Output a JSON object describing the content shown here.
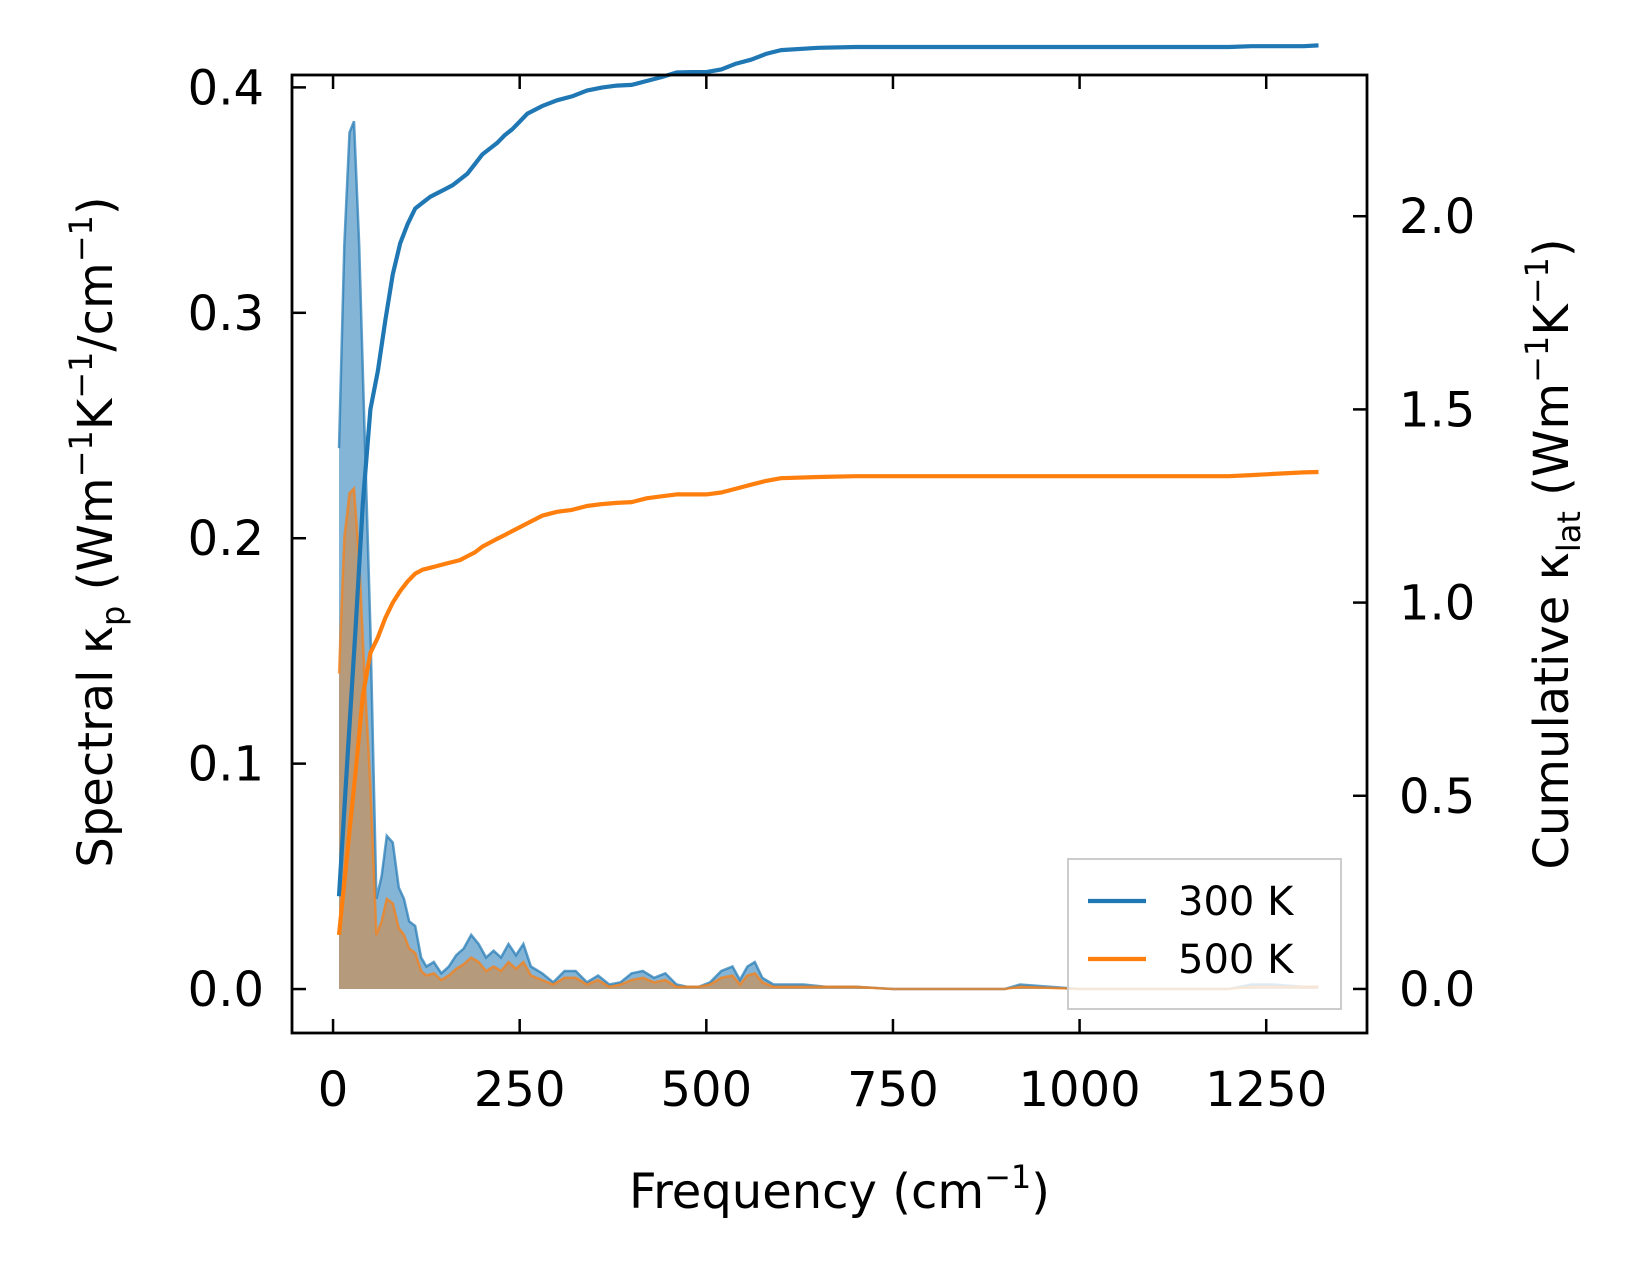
{
  "chart_data": {
    "type": "line",
    "title": "",
    "xlabel": "Frequency (cm",
    "xlabel_sup": "−1",
    "xlabel_end": ")",
    "ylabel_left_parts": [
      "Spectral κ",
      "p",
      " (Wm",
      "−1",
      "K",
      "−1",
      "/cm",
      "−1",
      ")"
    ],
    "ylabel_right_parts": [
      "Cumulative κ",
      "lat",
      " (Wm",
      "−1",
      "K",
      "−1",
      ")"
    ],
    "xlim": [
      -55,
      1385
    ],
    "ylim_left": [
      -0.0195,
      0.4055
    ],
    "ylim_right": [
      -0.114,
      2.3655
    ],
    "xticks": [
      0,
      250,
      500,
      750,
      1000,
      1250
    ],
    "xtick_labels": [
      "0",
      "250",
      "500",
      "750",
      "1000",
      "1250"
    ],
    "yticks_left": [
      0.0,
      0.1,
      0.2,
      0.3,
      0.4
    ],
    "ytick_labels_left": [
      "0.0",
      "0.1",
      "0.2",
      "0.3",
      "0.4"
    ],
    "yticks_right": [
      0.0,
      0.5,
      1.0,
      1.5,
      2.0
    ],
    "ytick_labels_right": [
      "0.0",
      "0.5",
      "1.0",
      "1.5",
      "2.0"
    ],
    "legend_position": "lower-right",
    "colors": {
      "s300": "#1f77b4",
      "s500": "#ff7f0e",
      "fill300": "#1f77b4",
      "fill500": "#d08c4b",
      "axis": "#000000"
    },
    "spectral_series": [
      {
        "name": "Spectral 300 K",
        "axis": "left",
        "color": "#1f77b4",
        "x": [
          8,
          15,
          22,
          28,
          35,
          42,
          50,
          58,
          65,
          72,
          80,
          88,
          95,
          102,
          110,
          118,
          125,
          135,
          145,
          155,
          165,
          175,
          185,
          195,
          205,
          215,
          225,
          235,
          245,
          255,
          265,
          280,
          295,
          310,
          325,
          340,
          355,
          370,
          385,
          400,
          415,
          430,
          445,
          460,
          475,
          490,
          505,
          520,
          535,
          545,
          555,
          565,
          575,
          590,
          610,
          630,
          660,
          700,
          750,
          800,
          900,
          920,
          1000,
          1100,
          1200,
          1230,
          1260,
          1300,
          1320
        ],
        "y": [
          0.24,
          0.33,
          0.38,
          0.385,
          0.33,
          0.25,
          0.16,
          0.04,
          0.05,
          0.068,
          0.065,
          0.045,
          0.04,
          0.03,
          0.028,
          0.014,
          0.01,
          0.012,
          0.007,
          0.01,
          0.015,
          0.018,
          0.024,
          0.02,
          0.014,
          0.017,
          0.014,
          0.02,
          0.015,
          0.02,
          0.01,
          0.007,
          0.003,
          0.008,
          0.008,
          0.003,
          0.006,
          0.002,
          0.003,
          0.007,
          0.008,
          0.005,
          0.007,
          0.002,
          0.001,
          0.001,
          0.003,
          0.008,
          0.01,
          0.004,
          0.01,
          0.012,
          0.005,
          0.002,
          0.002,
          0.002,
          0.001,
          0.001,
          0.0,
          0.0,
          0.0,
          0.002,
          0.0,
          0.0,
          0.0,
          0.002,
          0.002,
          0.001,
          0.001
        ]
      },
      {
        "name": "Spectral 500 K",
        "axis": "left",
        "color": "#ff7f0e",
        "x": [
          8,
          15,
          22,
          28,
          35,
          42,
          50,
          58,
          65,
          72,
          80,
          88,
          95,
          102,
          110,
          118,
          125,
          135,
          145,
          155,
          165,
          175,
          185,
          195,
          205,
          215,
          225,
          235,
          245,
          255,
          265,
          280,
          295,
          310,
          325,
          340,
          355,
          370,
          385,
          400,
          415,
          430,
          445,
          460,
          475,
          490,
          505,
          520,
          535,
          545,
          555,
          565,
          575,
          590,
          610,
          630,
          660,
          700,
          750,
          800,
          900,
          920,
          1000,
          1100,
          1200,
          1230,
          1260,
          1300,
          1320
        ],
        "y": [
          0.14,
          0.2,
          0.22,
          0.222,
          0.19,
          0.14,
          0.09,
          0.024,
          0.03,
          0.04,
          0.038,
          0.027,
          0.024,
          0.018,
          0.016,
          0.008,
          0.006,
          0.007,
          0.004,
          0.006,
          0.009,
          0.011,
          0.014,
          0.012,
          0.008,
          0.01,
          0.008,
          0.012,
          0.009,
          0.012,
          0.006,
          0.004,
          0.002,
          0.005,
          0.005,
          0.002,
          0.004,
          0.001,
          0.002,
          0.004,
          0.005,
          0.003,
          0.004,
          0.001,
          0.001,
          0.001,
          0.002,
          0.005,
          0.006,
          0.002,
          0.006,
          0.007,
          0.003,
          0.001,
          0.001,
          0.001,
          0.001,
          0.001,
          0.0,
          0.0,
          0.0,
          0.001,
          0.0,
          0.0,
          0.0,
          0.001,
          0.001,
          0.001,
          0.001
        ]
      }
    ],
    "cumulative_series": [
      {
        "name": "300 K",
        "axis": "right",
        "color": "#1f77b4",
        "x": [
          8,
          20,
          30,
          40,
          50,
          60,
          70,
          80,
          90,
          100,
          110,
          120,
          130,
          140,
          150,
          160,
          170,
          180,
          190,
          200,
          210,
          220,
          230,
          240,
          250,
          260,
          280,
          300,
          320,
          340,
          360,
          380,
          400,
          420,
          440,
          460,
          480,
          500,
          520,
          540,
          560,
          580,
          600,
          650,
          700,
          800,
          900,
          1000,
          1100,
          1200,
          1230,
          1260,
          1300,
          1320
        ],
        "y": [
          0.24,
          0.62,
          0.93,
          1.26,
          1.5,
          1.6,
          1.73,
          1.85,
          1.93,
          1.98,
          2.02,
          2.035,
          2.05,
          2.06,
          2.07,
          2.08,
          2.095,
          2.11,
          2.135,
          2.16,
          2.175,
          2.19,
          2.21,
          2.225,
          2.245,
          2.265,
          2.285,
          2.3,
          2.31,
          2.325,
          2.333,
          2.338,
          2.34,
          2.35,
          2.36,
          2.372,
          2.373,
          2.373,
          2.38,
          2.395,
          2.405,
          2.42,
          2.43,
          2.436,
          2.438,
          2.438,
          2.438,
          2.438,
          2.438,
          2.438,
          2.44,
          2.44,
          2.44,
          2.442
        ]
      },
      {
        "name": "500 K",
        "axis": "right",
        "color": "#ff7f0e",
        "x": [
          8,
          20,
          30,
          40,
          50,
          60,
          70,
          80,
          90,
          100,
          110,
          120,
          130,
          140,
          150,
          160,
          170,
          180,
          190,
          200,
          210,
          220,
          230,
          240,
          250,
          260,
          280,
          300,
          320,
          340,
          360,
          380,
          400,
          420,
          440,
          460,
          480,
          500,
          520,
          540,
          560,
          580,
          600,
          650,
          700,
          800,
          900,
          1000,
          1100,
          1200,
          1230,
          1260,
          1300,
          1320
        ],
        "y": [
          0.14,
          0.37,
          0.56,
          0.76,
          0.87,
          0.91,
          0.96,
          1.0,
          1.03,
          1.055,
          1.075,
          1.085,
          1.09,
          1.095,
          1.1,
          1.105,
          1.11,
          1.12,
          1.13,
          1.145,
          1.155,
          1.165,
          1.175,
          1.185,
          1.195,
          1.205,
          1.225,
          1.235,
          1.24,
          1.25,
          1.255,
          1.258,
          1.26,
          1.27,
          1.275,
          1.28,
          1.28,
          1.28,
          1.285,
          1.295,
          1.305,
          1.315,
          1.322,
          1.325,
          1.327,
          1.327,
          1.327,
          1.327,
          1.327,
          1.327,
          1.33,
          1.333,
          1.337,
          1.338
        ]
      }
    ]
  }
}
